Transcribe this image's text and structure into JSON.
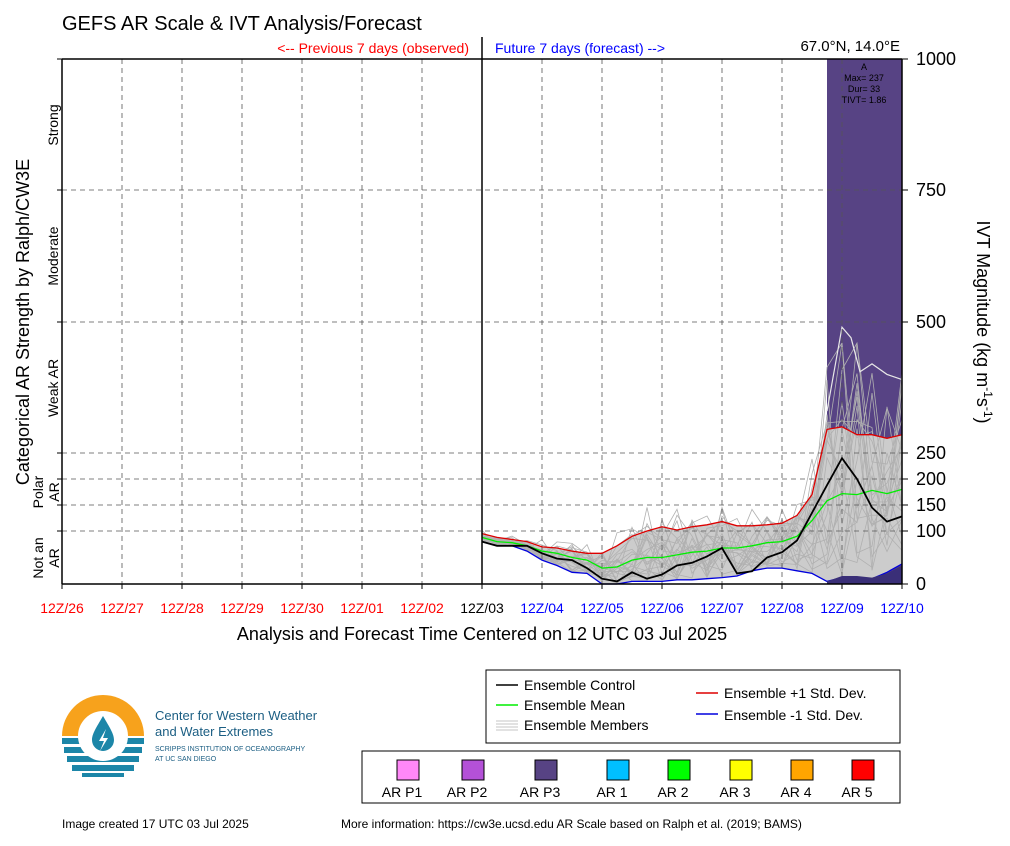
{
  "header": {
    "title": "GEFS AR Scale & IVT Analysis/Forecast",
    "previous_label": "<-- Previous 7 days (observed)",
    "future_label": "Future 7 days (forecast) -->",
    "location": "67.0°N, 14.0°E"
  },
  "colors": {
    "observed": "#ff0000",
    "forecast": "#0000ff",
    "control": "#000000",
    "mean": "#00ee00",
    "plus_std": "#dd0000",
    "minus_std": "#0000dd",
    "members": "#b0b0b0",
    "spread_fill": "#cccccc",
    "ar_p3": "#574384"
  },
  "chart_data": {
    "type": "line",
    "title": "GEFS AR Scale & IVT Analysis/Forecast",
    "xlabel": "Analysis and Forecast Time Centered on 12 UTC 03 Jul 2025",
    "ylabel_left": "Categorical AR Strength by Ralph/CW3E",
    "ylabel_right_parts": [
      "IVT Magnitude (kg m",
      "-1",
      "s",
      "-1",
      ")"
    ],
    "x_ticks_observed": [
      "12Z/26",
      "12Z/27",
      "12Z/28",
      "12Z/29",
      "12Z/30",
      "12Z/01",
      "12Z/02"
    ],
    "x_tick_center": "12Z/03",
    "x_ticks_forecast": [
      "12Z/04",
      "12Z/05",
      "12Z/06",
      "12Z/07",
      "12Z/08",
      "12Z/09",
      "12Z/10"
    ],
    "y_ticks": [
      "0",
      "100",
      "150",
      "200",
      "250",
      "500",
      "750",
      "1000"
    ],
    "y_tick_values": [
      0,
      100,
      150,
      200,
      250,
      500,
      750,
      1000
    ],
    "y_categories": [
      {
        "label": "Strong",
        "lines": [
          "Strong"
        ]
      },
      {
        "label": "Moderate",
        "lines": [
          "Moderate"
        ]
      },
      {
        "label": "Weak AR",
        "lines": [
          "Weak AR"
        ]
      },
      {
        "label": "Polar AR",
        "lines": [
          "Polar",
          "AR"
        ]
      },
      {
        "label": "Not an AR",
        "lines": [
          "Not an",
          "AR"
        ]
      }
    ],
    "x_unit": "days relative to 12Z/03",
    "xlim": [
      -7,
      7
    ],
    "series": [
      {
        "name": "Ensemble Control",
        "x": [
          0,
          0.25,
          0.5,
          0.75,
          1,
          1.25,
          1.5,
          1.75,
          2,
          2.25,
          2.5,
          2.75,
          3,
          3.25,
          3.5,
          3.75,
          4,
          4.25,
          4.5,
          4.75,
          5,
          5.25,
          5.5,
          5.75,
          6,
          6.25,
          6.5,
          6.75,
          7
        ],
        "y": [
          80,
          72,
          72,
          72,
          58,
          48,
          45,
          30,
          10,
          5,
          22,
          10,
          18,
          35,
          40,
          52,
          68,
          20,
          24,
          50,
          60,
          82,
          135,
          188,
          240,
          200,
          145,
          118,
          128
        ]
      },
      {
        "name": "Ensemble Mean",
        "x": [
          0,
          0.25,
          0.5,
          0.75,
          1,
          1.25,
          1.5,
          1.75,
          2,
          2.25,
          2.5,
          2.75,
          3,
          3.25,
          3.5,
          3.75,
          4,
          4.25,
          4.5,
          4.75,
          5,
          5.25,
          5.5,
          5.75,
          6,
          6.25,
          6.5,
          6.75,
          7
        ],
        "y": [
          88,
          80,
          78,
          72,
          62,
          58,
          50,
          45,
          30,
          32,
          45,
          50,
          50,
          55,
          60,
          62,
          68,
          68,
          72,
          78,
          80,
          90,
          120,
          158,
          172,
          170,
          178,
          172,
          180
        ]
      },
      {
        "name": "Ensemble +1 Std. Dev.",
        "x": [
          0,
          0.25,
          0.5,
          0.75,
          1,
          1.25,
          1.5,
          1.75,
          2,
          2.25,
          2.5,
          2.75,
          3,
          3.25,
          3.5,
          3.75,
          4,
          4.25,
          4.5,
          4.75,
          5,
          5.25,
          5.5,
          5.75,
          6,
          6.25,
          6.5,
          6.75,
          7
        ],
        "y": [
          95,
          88,
          84,
          80,
          70,
          68,
          62,
          58,
          58,
          72,
          90,
          100,
          108,
          102,
          108,
          112,
          118,
          110,
          110,
          112,
          115,
          130,
          170,
          295,
          300,
          285,
          285,
          278,
          285
        ]
      },
      {
        "name": "Ensemble -1 Std. Dev.",
        "x": [
          0,
          0.25,
          0.5,
          0.75,
          1,
          1.25,
          1.5,
          1.75,
          2,
          2.25,
          2.5,
          2.75,
          3,
          3.25,
          3.5,
          3.75,
          4,
          4.25,
          4.5,
          4.75,
          5,
          5.25,
          5.5,
          5.75,
          6,
          6.25,
          6.5,
          6.75,
          7
        ],
        "y": [
          80,
          72,
          72,
          62,
          45,
          35,
          22,
          20,
          0,
          0,
          5,
          5,
          5,
          8,
          8,
          10,
          12,
          15,
          25,
          30,
          30,
          25,
          20,
          5,
          12,
          12,
          10,
          22,
          38
        ]
      }
    ],
    "ar_shading": {
      "category": "AR P3",
      "x_start": 5.75,
      "x_end": 7,
      "y_max": 1000
    },
    "ar_annotation": {
      "lines": [
        "A",
        "Max= 237",
        "Dur= 33",
        "TIVT= 1.86"
      ]
    }
  },
  "legend": {
    "items": [
      "Ensemble Control",
      "Ensemble Mean",
      "Ensemble Members",
      "Ensemble +1 Std. Dev.",
      "Ensemble -1 Std. Dev."
    ]
  },
  "ar_legend": [
    {
      "label": "AR P1",
      "color": "#ff88f8"
    },
    {
      "label": "AR P2",
      "color": "#b451d8"
    },
    {
      "label": "AR P3",
      "color": "#574384"
    },
    {
      "label": "AR 1",
      "color": "#00bfff"
    },
    {
      "label": "AR 2",
      "color": "#00ff00"
    },
    {
      "label": "AR 3",
      "color": "#ffff00"
    },
    {
      "label": "AR 4",
      "color": "#ffa500"
    },
    {
      "label": "AR 5",
      "color": "#ff0000"
    }
  ],
  "logo": {
    "name_line1": "Center for Western Weather",
    "name_line2": "and Water Extremes",
    "sub_line1": "SCRIPPS INSTITUTION OF OCEANOGRAPHY",
    "sub_line2": "AT UC SAN DIEGO"
  },
  "footer": {
    "created": "Image created 17 UTC 03 Jul 2025",
    "more_info": "More information: https://cw3e.ucsd.edu AR Scale based on Ralph et al. (2019; BAMS)"
  }
}
